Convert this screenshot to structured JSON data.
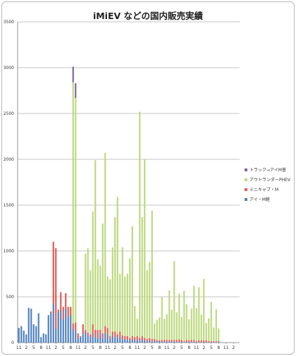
{
  "chart_data": {
    "type": "bar",
    "stacked": true,
    "title": "iMiEV などの国内販売実績",
    "xlabel": "",
    "ylabel": "",
    "ylim": [
      0,
      3500
    ],
    "yticks": [
      0,
      500,
      1000,
      1500,
      2000,
      2500,
      3000,
      3500
    ],
    "x_tick_labels": [
      "11",
      "2",
      "5",
      "8",
      "11",
      "2",
      "5",
      "8",
      "11",
      "2",
      "5",
      "8",
      "11",
      "2",
      "5",
      "8",
      "11",
      "2",
      "5",
      "8",
      "11",
      "2",
      "5",
      "8",
      "11",
      "2",
      "5",
      "8",
      "11",
      "2"
    ],
    "grid": "horizontal",
    "legend_position": "right",
    "series": [
      {
        "name": "アイ・M軽",
        "color": "#4f81bd",
        "values": [
          160,
          180,
          130,
          90,
          380,
          370,
          200,
          180,
          320,
          60,
          100,
          90,
          300,
          320,
          430,
          150,
          330,
          360,
          250,
          370,
          280,
          300,
          150,
          120,
          50,
          60,
          90,
          120,
          80,
          60,
          100,
          60,
          50,
          100,
          40,
          110,
          90,
          40,
          80,
          60,
          50,
          70,
          30,
          40,
          30,
          30,
          40,
          20,
          40,
          20,
          30,
          20,
          20,
          20,
          10,
          20,
          10,
          15,
          10,
          10,
          10,
          10,
          10,
          10,
          10,
          5,
          10,
          5,
          10,
          5,
          10,
          10,
          5,
          5,
          5,
          5,
          5,
          5,
          5,
          5,
          5,
          5
        ]
      },
      {
        "name": "ミニキャブ・M",
        "color": "#e05b54",
        "values": [
          0,
          0,
          0,
          0,
          0,
          0,
          0,
          0,
          0,
          0,
          0,
          0,
          0,
          20,
          670,
          880,
          30,
          190,
          140,
          170,
          110,
          90,
          60,
          100,
          50,
          10,
          110,
          20,
          30,
          30,
          100,
          80,
          90,
          40,
          60,
          70,
          70,
          30,
          40,
          60,
          40,
          50,
          50,
          30,
          40,
          20,
          30,
          40,
          30,
          30,
          40,
          30,
          20,
          30,
          30,
          20,
          20,
          10,
          20,
          20,
          20,
          20,
          20,
          20,
          20,
          30,
          20,
          10,
          20,
          20,
          20,
          20,
          10,
          20,
          20,
          20,
          20,
          10,
          10,
          10,
          10,
          10
        ]
      },
      {
        "name": "アウトランダーPHEV",
        "color": "#bdd87e",
        "values": [
          0,
          0,
          0,
          0,
          0,
          0,
          0,
          0,
          0,
          0,
          0,
          0,
          0,
          0,
          0,
          0,
          0,
          0,
          0,
          0,
          0,
          0,
          2630,
          2450,
          0,
          0,
          0,
          830,
          920,
          700,
          1230,
          1850,
          770,
          700,
          1200,
          1890,
          560,
          620,
          920,
          1250,
          1500,
          630,
          960,
          650,
          680,
          870,
          1200,
          340,
          190,
          2470,
          1300,
          1950,
          750,
          830,
          1400,
          170,
          220,
          250,
          470,
          230,
          280,
          540,
          330,
          860,
          300,
          500,
          250,
          550,
          390,
          230,
          340,
          590,
          360,
          580,
          280,
          670,
          190,
          250,
          430,
          150,
          350,
          140
        ]
      },
      {
        "name": "トラック→アイM普",
        "color": "#8064a2",
        "values": [
          0,
          0,
          0,
          0,
          0,
          0,
          0,
          0,
          0,
          0,
          0,
          0,
          0,
          0,
          0,
          0,
          0,
          0,
          0,
          0,
          0,
          0,
          170,
          160,
          0,
          0,
          0,
          0,
          0,
          0,
          0,
          0,
          0,
          0,
          0,
          0,
          0,
          0,
          0,
          0,
          0,
          0,
          0,
          0,
          0,
          0,
          0,
          0,
          0,
          0,
          0,
          0,
          0,
          0,
          0,
          0,
          0,
          0,
          0,
          0,
          0,
          0,
          0,
          0,
          0,
          0,
          0,
          0,
          0,
          0,
          0,
          0,
          0,
          0,
          0,
          0,
          0,
          0,
          0,
          0,
          0,
          0
        ]
      }
    ]
  }
}
